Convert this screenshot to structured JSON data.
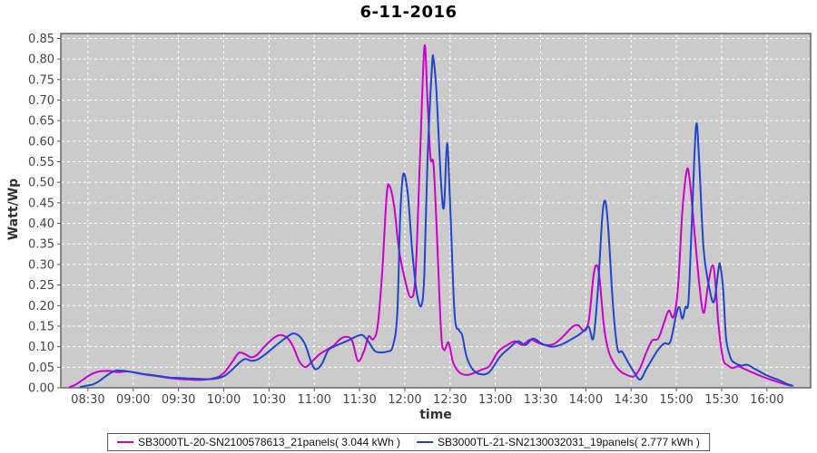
{
  "chart_data": {
    "type": "line",
    "title": "6-11-2016",
    "xlabel": "time",
    "ylabel": "Watt/Wp",
    "x_ticks": [
      "08:30",
      "09:00",
      "09:30",
      "10:00",
      "10:30",
      "11:00",
      "11:30",
      "12:00",
      "12:30",
      "13:00",
      "13:30",
      "14:00",
      "14:30",
      "15:00",
      "15:30",
      "16:00"
    ],
    "y_ticks": [
      "0.00",
      "0.05",
      "0.10",
      "0.15",
      "0.20",
      "0.25",
      "0.30",
      "0.35",
      "0.40",
      "0.45",
      "0.50",
      "0.55",
      "0.60",
      "0.65",
      "0.70",
      "0.75",
      "0.80",
      "0.85"
    ],
    "xlim": [
      "08:12",
      "16:29"
    ],
    "ylim": [
      0,
      0.862
    ],
    "grid": "white dashed on gray plot background",
    "legend_position": "bottom-center",
    "plot_bg": "#cbcbcb",
    "plot_border": "#666666",
    "grid_color": "#ffffff",
    "tick_color": "#555555",
    "label_color": "#444444",
    "series": [
      {
        "name": "SB3000TL-20-SN2100578613_21panels( 3.044 kWh )",
        "energy_kwh": 3.044,
        "color": "#CC00CC",
        "points": [
          [
            "08:18",
            0.002
          ],
          [
            "08:22",
            0.008
          ],
          [
            "08:26",
            0.018
          ],
          [
            "08:30",
            0.028
          ],
          [
            "08:34",
            0.036
          ],
          [
            "08:38",
            0.04
          ],
          [
            "08:44",
            0.041
          ],
          [
            "08:50",
            0.038
          ],
          [
            "08:56",
            0.04
          ],
          [
            "09:02",
            0.036
          ],
          [
            "09:08",
            0.032
          ],
          [
            "09:14",
            0.029
          ],
          [
            "09:20",
            0.026
          ],
          [
            "09:26",
            0.023
          ],
          [
            "09:32",
            0.021
          ],
          [
            "09:38",
            0.02
          ],
          [
            "09:44",
            0.019
          ],
          [
            "09:50",
            0.021
          ],
          [
            "09:56",
            0.026
          ],
          [
            "10:01",
            0.04
          ],
          [
            "10:06",
            0.065
          ],
          [
            "10:10",
            0.085
          ],
          [
            "10:14",
            0.082
          ],
          [
            "10:18",
            0.074
          ],
          [
            "10:22",
            0.08
          ],
          [
            "10:27",
            0.1
          ],
          [
            "10:32",
            0.118
          ],
          [
            "10:37",
            0.128
          ],
          [
            "10:42",
            0.122
          ],
          [
            "10:46",
            0.1
          ],
          [
            "10:50",
            0.065
          ],
          [
            "10:54",
            0.05
          ],
          [
            "10:58",
            0.062
          ],
          [
            "11:03",
            0.08
          ],
          [
            "11:08",
            0.092
          ],
          [
            "11:13",
            0.103
          ],
          [
            "11:17",
            0.118
          ],
          [
            "11:21",
            0.124
          ],
          [
            "11:25",
            0.115
          ],
          [
            "11:29",
            0.065
          ],
          [
            "11:33",
            0.09
          ],
          [
            "11:36",
            0.125
          ],
          [
            "11:39",
            0.118
          ],
          [
            "11:42",
            0.15
          ],
          [
            "11:45",
            0.28
          ],
          [
            "11:48",
            0.47
          ],
          [
            "11:50",
            0.49
          ],
          [
            "11:53",
            0.44
          ],
          [
            "11:56",
            0.34
          ],
          [
            "12:00",
            0.265
          ],
          [
            "12:04",
            0.22
          ],
          [
            "12:07",
            0.27
          ],
          [
            "12:10",
            0.55
          ],
          [
            "12:13",
            0.83
          ],
          [
            "12:15",
            0.7
          ],
          [
            "12:17",
            0.56
          ],
          [
            "12:19",
            0.545
          ],
          [
            "12:21",
            0.4
          ],
          [
            "12:24",
            0.14
          ],
          [
            "12:26",
            0.092
          ],
          [
            "12:29",
            0.11
          ],
          [
            "12:32",
            0.062
          ],
          [
            "12:36",
            0.038
          ],
          [
            "12:41",
            0.031
          ],
          [
            "12:46",
            0.036
          ],
          [
            "12:51",
            0.044
          ],
          [
            "12:56",
            0.053
          ],
          [
            "13:02",
            0.088
          ],
          [
            "13:08",
            0.104
          ],
          [
            "13:13",
            0.113
          ],
          [
            "13:18",
            0.104
          ],
          [
            "13:23",
            0.117
          ],
          [
            "13:28",
            0.11
          ],
          [
            "13:33",
            0.104
          ],
          [
            "13:39",
            0.107
          ],
          [
            "13:45",
            0.125
          ],
          [
            "13:51",
            0.148
          ],
          [
            "13:55",
            0.152
          ],
          [
            "13:59",
            0.138
          ],
          [
            "14:02",
            0.165
          ],
          [
            "14:05",
            0.27
          ],
          [
            "14:07",
            0.298
          ],
          [
            "14:09",
            0.27
          ],
          [
            "14:12",
            0.15
          ],
          [
            "14:15",
            0.09
          ],
          [
            "14:19",
            0.058
          ],
          [
            "14:23",
            0.04
          ],
          [
            "14:28",
            0.03
          ],
          [
            "14:32",
            0.028
          ],
          [
            "14:36",
            0.048
          ],
          [
            "14:40",
            0.085
          ],
          [
            "14:44",
            0.115
          ],
          [
            "14:48",
            0.12
          ],
          [
            "14:52",
            0.16
          ],
          [
            "14:55",
            0.188
          ],
          [
            "14:58",
            0.172
          ],
          [
            "15:01",
            0.24
          ],
          [
            "15:04",
            0.43
          ],
          [
            "15:07",
            0.53
          ],
          [
            "15:09",
            0.5
          ],
          [
            "15:12",
            0.38
          ],
          [
            "15:15",
            0.26
          ],
          [
            "15:18",
            0.182
          ],
          [
            "15:21",
            0.25
          ],
          [
            "15:24",
            0.298
          ],
          [
            "15:26",
            0.25
          ],
          [
            "15:28",
            0.15
          ],
          [
            "15:31",
            0.07
          ],
          [
            "15:34",
            0.055
          ],
          [
            "15:37",
            0.048
          ],
          [
            "15:41",
            0.052
          ],
          [
            "15:45",
            0.046
          ],
          [
            "15:50",
            0.038
          ],
          [
            "15:55",
            0.03
          ],
          [
            "16:00",
            0.023
          ],
          [
            "16:05",
            0.017
          ],
          [
            "16:10",
            0.011
          ],
          [
            "16:16",
            0.005
          ]
        ]
      },
      {
        "name": "SB3000TL-21-SN2130032031_19panels( 2.777 kWh )",
        "energy_kwh": 2.777,
        "color": "#2244CC",
        "points": [
          [
            "08:25",
            0.002
          ],
          [
            "08:29",
            0.005
          ],
          [
            "08:33",
            0.008
          ],
          [
            "08:37",
            0.015
          ],
          [
            "08:41",
            0.026
          ],
          [
            "08:45",
            0.036
          ],
          [
            "08:49",
            0.042
          ],
          [
            "08:54",
            0.041
          ],
          [
            "09:00",
            0.038
          ],
          [
            "09:06",
            0.034
          ],
          [
            "09:12",
            0.031
          ],
          [
            "09:18",
            0.028
          ],
          [
            "09:24",
            0.025
          ],
          [
            "09:30",
            0.024
          ],
          [
            "09:36",
            0.023
          ],
          [
            "09:42",
            0.022
          ],
          [
            "09:48",
            0.021
          ],
          [
            "09:54",
            0.022
          ],
          [
            "10:00",
            0.028
          ],
          [
            "10:05",
            0.042
          ],
          [
            "10:10",
            0.06
          ],
          [
            "10:14",
            0.07
          ],
          [
            "10:18",
            0.066
          ],
          [
            "10:22",
            0.068
          ],
          [
            "10:27",
            0.08
          ],
          [
            "10:32",
            0.095
          ],
          [
            "10:37",
            0.11
          ],
          [
            "10:42",
            0.124
          ],
          [
            "10:46",
            0.132
          ],
          [
            "10:50",
            0.126
          ],
          [
            "10:54",
            0.105
          ],
          [
            "10:58",
            0.062
          ],
          [
            "11:01",
            0.045
          ],
          [
            "11:05",
            0.058
          ],
          [
            "11:09",
            0.09
          ],
          [
            "11:13",
            0.1
          ],
          [
            "11:18",
            0.108
          ],
          [
            "11:23",
            0.116
          ],
          [
            "11:28",
            0.125
          ],
          [
            "11:32",
            0.128
          ],
          [
            "11:36",
            0.112
          ],
          [
            "11:40",
            0.09
          ],
          [
            "11:44",
            0.086
          ],
          [
            "11:48",
            0.088
          ],
          [
            "11:52",
            0.1
          ],
          [
            "11:55",
            0.18
          ],
          [
            "11:57",
            0.42
          ],
          [
            "11:59",
            0.52
          ],
          [
            "12:02",
            0.47
          ],
          [
            "12:05",
            0.33
          ],
          [
            "12:08",
            0.23
          ],
          [
            "12:11",
            0.2
          ],
          [
            "12:13",
            0.28
          ],
          [
            "12:15",
            0.55
          ],
          [
            "12:18",
            0.78
          ],
          [
            "12:19",
            0.8
          ],
          [
            "12:21",
            0.72
          ],
          [
            "12:24",
            0.5
          ],
          [
            "12:26",
            0.44
          ],
          [
            "12:28",
            0.595
          ],
          [
            "12:30",
            0.45
          ],
          [
            "12:33",
            0.18
          ],
          [
            "12:36",
            0.14
          ],
          [
            "12:38",
            0.128
          ],
          [
            "12:41",
            0.075
          ],
          [
            "12:45",
            0.045
          ],
          [
            "12:50",
            0.033
          ],
          [
            "12:56",
            0.038
          ],
          [
            "13:03",
            0.075
          ],
          [
            "13:09",
            0.096
          ],
          [
            "13:15",
            0.113
          ],
          [
            "13:20",
            0.104
          ],
          [
            "13:25",
            0.12
          ],
          [
            "13:31",
            0.107
          ],
          [
            "13:37",
            0.1
          ],
          [
            "13:43",
            0.104
          ],
          [
            "13:49",
            0.115
          ],
          [
            "13:55",
            0.128
          ],
          [
            "13:59",
            0.14
          ],
          [
            "14:02",
            0.148
          ],
          [
            "14:05",
            0.121
          ],
          [
            "14:08",
            0.24
          ],
          [
            "14:11",
            0.42
          ],
          [
            "14:13",
            0.453
          ],
          [
            "14:15",
            0.38
          ],
          [
            "14:18",
            0.2
          ],
          [
            "14:21",
            0.095
          ],
          [
            "14:24",
            0.088
          ],
          [
            "14:28",
            0.062
          ],
          [
            "14:32",
            0.038
          ],
          [
            "14:36",
            0.02
          ],
          [
            "14:40",
            0.045
          ],
          [
            "14:44",
            0.07
          ],
          [
            "14:48",
            0.093
          ],
          [
            "14:52",
            0.108
          ],
          [
            "14:56",
            0.112
          ],
          [
            "15:00",
            0.18
          ],
          [
            "15:02",
            0.196
          ],
          [
            "15:04",
            0.168
          ],
          [
            "15:06",
            0.196
          ],
          [
            "15:08",
            0.21
          ],
          [
            "15:10",
            0.38
          ],
          [
            "15:13",
            0.635
          ],
          [
            "15:15",
            0.56
          ],
          [
            "15:18",
            0.34
          ],
          [
            "15:22",
            0.24
          ],
          [
            "15:25",
            0.21
          ],
          [
            "15:28",
            0.29
          ],
          [
            "15:29",
            0.298
          ],
          [
            "15:31",
            0.24
          ],
          [
            "15:33",
            0.12
          ],
          [
            "15:36",
            0.072
          ],
          [
            "15:39",
            0.06
          ],
          [
            "15:43",
            0.054
          ],
          [
            "15:47",
            0.056
          ],
          [
            "15:51",
            0.048
          ],
          [
            "15:55",
            0.04
          ],
          [
            "15:59",
            0.032
          ],
          [
            "16:04",
            0.024
          ],
          [
            "16:09",
            0.017
          ],
          [
            "16:13",
            0.01
          ],
          [
            "16:17",
            0.005
          ]
        ]
      }
    ]
  }
}
